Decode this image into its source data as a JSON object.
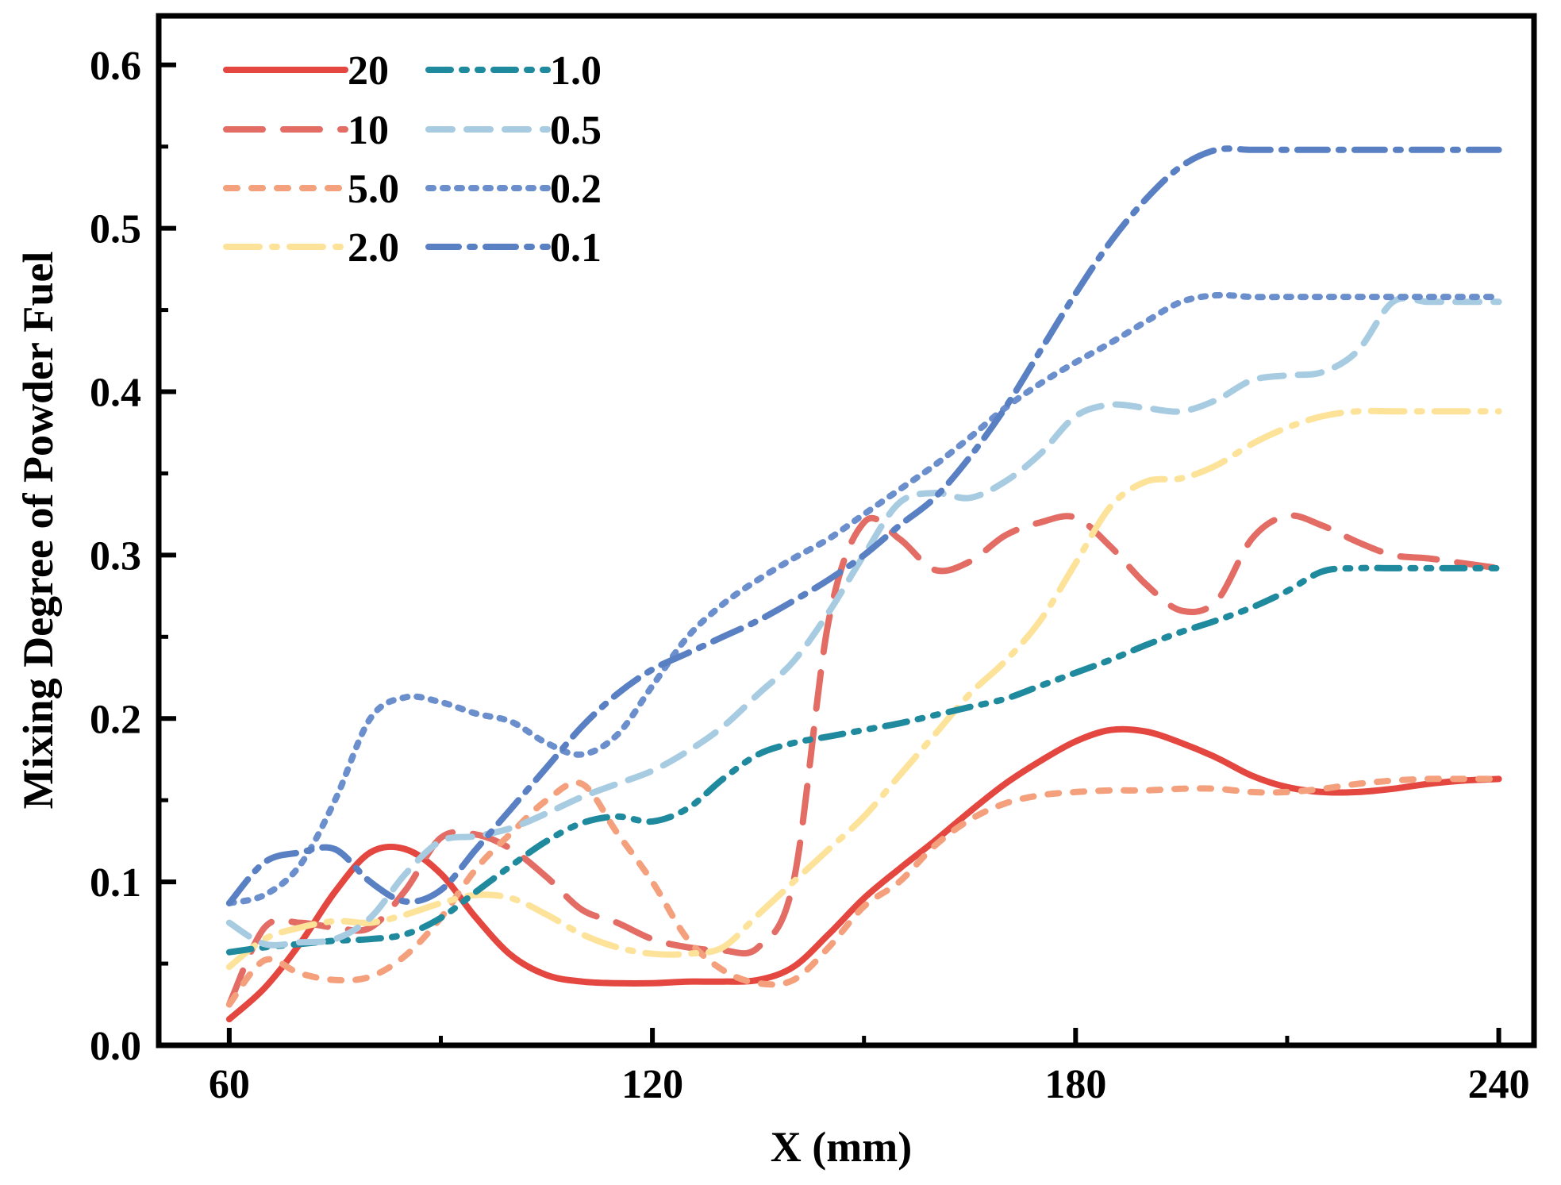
{
  "chart_data": {
    "type": "line",
    "title": "",
    "xlabel": "X (mm)",
    "ylabel": "Mixing Degree of Powder Fuel",
    "xlim": [
      50,
      245
    ],
    "ylim": [
      0.0,
      0.63
    ],
    "x_ticks": [
      60,
      120,
      180,
      240
    ],
    "x_tick_labels": [
      "60",
      "120",
      "180",
      "240"
    ],
    "y_ticks": [
      0.0,
      0.1,
      0.2,
      0.3,
      0.4,
      0.5,
      0.6
    ],
    "y_tick_labels": [
      "0.0",
      "0.1",
      "0.2",
      "0.3",
      "0.4",
      "0.5",
      "0.6"
    ],
    "grid": false,
    "legend_position": "top-left",
    "series": [
      {
        "name": "20",
        "color": "#e4473f",
        "dash": "solid",
        "x": [
          60,
          65,
          70,
          75,
          80,
          85,
          90,
          95,
          100,
          105,
          110,
          115,
          120,
          125,
          130,
          135,
          140,
          145,
          150,
          155,
          160,
          165,
          170,
          175,
          180,
          185,
          190,
          195,
          200,
          205,
          210,
          215,
          220,
          225,
          230,
          235,
          240
        ],
        "y": [
          0.016,
          0.035,
          0.062,
          0.094,
          0.118,
          0.12,
          0.105,
          0.078,
          0.055,
          0.043,
          0.039,
          0.038,
          0.038,
          0.039,
          0.039,
          0.04,
          0.048,
          0.068,
          0.09,
          0.108,
          0.125,
          0.143,
          0.16,
          0.174,
          0.186,
          0.193,
          0.192,
          0.185,
          0.176,
          0.165,
          0.158,
          0.155,
          0.155,
          0.157,
          0.16,
          0.162,
          0.163
        ]
      },
      {
        "name": "10",
        "color": "#e36c64",
        "dash": "long-dash",
        "x": [
          60,
          65,
          70,
          75,
          80,
          85,
          90,
          95,
          100,
          105,
          110,
          115,
          120,
          125,
          130,
          135,
          140,
          145,
          150,
          155,
          160,
          165,
          170,
          175,
          180,
          185,
          190,
          195,
          200,
          205,
          210,
          215,
          220,
          225,
          230,
          235,
          240
        ],
        "y": [
          0.025,
          0.072,
          0.075,
          0.072,
          0.072,
          0.095,
          0.127,
          0.129,
          0.12,
          0.103,
          0.083,
          0.075,
          0.065,
          0.06,
          0.058,
          0.06,
          0.1,
          0.26,
          0.32,
          0.31,
          0.291,
          0.296,
          0.312,
          0.32,
          0.323,
          0.305,
          0.282,
          0.266,
          0.272,
          0.31,
          0.324,
          0.318,
          0.308,
          0.3,
          0.298,
          0.295,
          0.292
        ]
      },
      {
        "name": "5.0",
        "color": "#f4a07d",
        "dash": "short-dash",
        "x": [
          60,
          65,
          70,
          75,
          80,
          85,
          90,
          95,
          100,
          105,
          110,
          115,
          120,
          125,
          130,
          135,
          140,
          145,
          150,
          155,
          160,
          165,
          170,
          175,
          180,
          185,
          190,
          195,
          200,
          205,
          210,
          215,
          220,
          225,
          230,
          235,
          240
        ],
        "y": [
          0.025,
          0.052,
          0.044,
          0.04,
          0.042,
          0.055,
          0.078,
          0.108,
          0.13,
          0.15,
          0.16,
          0.13,
          0.1,
          0.065,
          0.046,
          0.038,
          0.04,
          0.06,
          0.085,
          0.1,
          0.122,
          0.138,
          0.148,
          0.153,
          0.155,
          0.156,
          0.156,
          0.157,
          0.157,
          0.155,
          0.155,
          0.157,
          0.16,
          0.162,
          0.163,
          0.163,
          0.163
        ]
      },
      {
        "name": "2.0",
        "color": "#fde39a",
        "dash": "dash-dot",
        "x": [
          60,
          65,
          70,
          75,
          80,
          85,
          90,
          95,
          100,
          105,
          110,
          115,
          120,
          125,
          130,
          135,
          140,
          145,
          150,
          155,
          160,
          165,
          170,
          175,
          180,
          185,
          190,
          195,
          200,
          205,
          210,
          215,
          220,
          225,
          230,
          235,
          240
        ],
        "y": [
          0.048,
          0.065,
          0.072,
          0.076,
          0.075,
          0.08,
          0.087,
          0.092,
          0.09,
          0.08,
          0.068,
          0.06,
          0.056,
          0.056,
          0.06,
          0.08,
          0.1,
          0.12,
          0.14,
          0.165,
          0.19,
          0.215,
          0.235,
          0.26,
          0.295,
          0.33,
          0.345,
          0.347,
          0.355,
          0.368,
          0.378,
          0.385,
          0.388,
          0.388,
          0.388,
          0.388,
          0.388
        ]
      },
      {
        "name": "1.0",
        "color": "#1f8a9e",
        "dash": "dash-dot-dot",
        "x": [
          60,
          65,
          70,
          75,
          80,
          85,
          90,
          95,
          100,
          105,
          110,
          115,
          120,
          125,
          130,
          135,
          140,
          145,
          150,
          155,
          160,
          165,
          170,
          175,
          180,
          185,
          190,
          195,
          200,
          205,
          210,
          215,
          220,
          225,
          230,
          235,
          240
        ],
        "y": [
          0.057,
          0.06,
          0.062,
          0.064,
          0.065,
          0.068,
          0.078,
          0.094,
          0.11,
          0.125,
          0.136,
          0.14,
          0.137,
          0.145,
          0.163,
          0.178,
          0.185,
          0.189,
          0.193,
          0.197,
          0.202,
          0.207,
          0.212,
          0.22,
          0.228,
          0.236,
          0.245,
          0.253,
          0.26,
          0.268,
          0.278,
          0.29,
          0.292,
          0.292,
          0.292,
          0.292,
          0.292
        ]
      },
      {
        "name": "0.5",
        "color": "#a7cce2",
        "dash": "dash",
        "x": [
          60,
          65,
          70,
          75,
          80,
          85,
          90,
          95,
          100,
          105,
          110,
          115,
          120,
          125,
          130,
          135,
          140,
          145,
          150,
          155,
          160,
          165,
          170,
          175,
          180,
          185,
          190,
          195,
          200,
          205,
          210,
          215,
          220,
          225,
          230,
          235,
          240
        ],
        "y": [
          0.075,
          0.062,
          0.063,
          0.065,
          0.078,
          0.105,
          0.125,
          0.128,
          0.133,
          0.142,
          0.152,
          0.16,
          0.168,
          0.18,
          0.195,
          0.215,
          0.235,
          0.265,
          0.3,
          0.332,
          0.338,
          0.335,
          0.345,
          0.362,
          0.385,
          0.392,
          0.39,
          0.388,
          0.395,
          0.407,
          0.41,
          0.412,
          0.425,
          0.455,
          0.455,
          0.455,
          0.455
        ]
      },
      {
        "name": "0.2",
        "color": "#6a8fcc",
        "dash": "dot",
        "x": [
          60,
          65,
          70,
          75,
          80,
          85,
          90,
          95,
          100,
          105,
          110,
          115,
          120,
          125,
          130,
          135,
          140,
          145,
          150,
          155,
          160,
          165,
          170,
          175,
          180,
          185,
          190,
          195,
          200,
          205,
          210,
          215,
          220,
          225,
          230,
          235,
          240
        ],
        "y": [
          0.087,
          0.092,
          0.11,
          0.15,
          0.2,
          0.213,
          0.21,
          0.203,
          0.198,
          0.185,
          0.178,
          0.19,
          0.22,
          0.25,
          0.27,
          0.285,
          0.298,
          0.31,
          0.325,
          0.34,
          0.355,
          0.372,
          0.39,
          0.405,
          0.418,
          0.43,
          0.443,
          0.455,
          0.459,
          0.458,
          0.458,
          0.458,
          0.458,
          0.458,
          0.458,
          0.458,
          0.458
        ]
      },
      {
        "name": "0.1",
        "color": "#5a80c4",
        "dash": "dash-dot-long",
        "x": [
          60,
          65,
          70,
          75,
          80,
          85,
          90,
          95,
          100,
          105,
          110,
          115,
          120,
          125,
          130,
          135,
          140,
          145,
          150,
          155,
          160,
          165,
          170,
          175,
          180,
          185,
          190,
          195,
          200,
          205,
          210,
          215,
          220,
          225,
          230,
          235,
          240
        ],
        "y": [
          0.087,
          0.112,
          0.118,
          0.12,
          0.1,
          0.088,
          0.095,
          0.12,
          0.145,
          0.17,
          0.195,
          0.215,
          0.23,
          0.24,
          0.25,
          0.26,
          0.272,
          0.285,
          0.3,
          0.318,
          0.335,
          0.36,
          0.39,
          0.425,
          0.46,
          0.492,
          0.518,
          0.538,
          0.548,
          0.548,
          0.548,
          0.548,
          0.548,
          0.548,
          0.548,
          0.548,
          0.548
        ]
      }
    ]
  }
}
